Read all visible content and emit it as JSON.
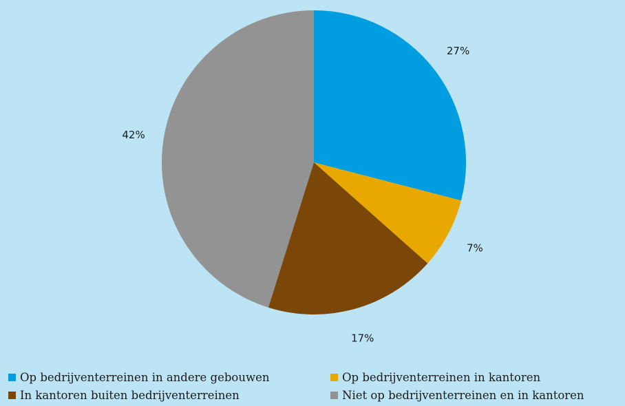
{
  "chart_data": {
    "type": "pie",
    "slices": [
      {
        "label": "Op bedrijventerreinen in andere gebouwen",
        "value": 27,
        "display": "27%",
        "color": "#009ee0"
      },
      {
        "label": "Op bedrijventerreinen in kantoren",
        "value": 7,
        "display": "7%",
        "color": "#e8a800"
      },
      {
        "label": "In kantoren buiten bedrijventerreinen",
        "value": 17,
        "display": "17%",
        "color": "#7a4709"
      },
      {
        "label": "Niet op bedrijventerreinen en in kantoren",
        "value": 42,
        "display": "42%",
        "color": "#939393"
      }
    ],
    "legend_position": "bottom"
  },
  "legend": {
    "items": [
      {
        "label": "Op bedrijventerreinen in andere gebouwen",
        "color": "#009ee0"
      },
      {
        "label": "Op bedrijventerreinen in kantoren",
        "color": "#e8a800"
      },
      {
        "label": "In kantoren buiten bedrijventerreinen",
        "color": "#7a4709"
      },
      {
        "label": "Niet op bedrijventerreinen en in kantoren",
        "color": "#939393"
      }
    ]
  },
  "background_color": "#bde4f5"
}
